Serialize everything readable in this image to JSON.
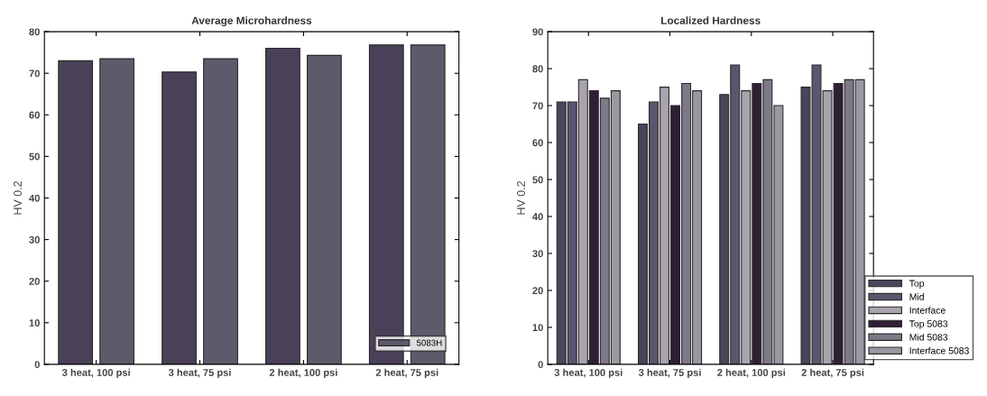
{
  "chart_data": [
    {
      "type": "bar",
      "title": "Average Microhardness",
      "ylabel": "HV 0.2",
      "categories": [
        "3 heat, 100 psi",
        "3 heat, 75 psi",
        "2 heat, 100 psi",
        "2 heat, 75 psi"
      ],
      "ylim": [
        0,
        80
      ],
      "yticks": [
        0,
        10,
        20,
        30,
        40,
        50,
        60,
        70,
        80
      ],
      "legend": "bottom right",
      "grid": false,
      "series": [
        {
          "color": "#4a4058",
          "values": [
            73,
            70.3,
            76,
            76.8
          ]
        },
        {
          "name": "5083H",
          "color": "#5e5a6c",
          "values": [
            73.5,
            73.5,
            74.3,
            76.8
          ]
        }
      ]
    },
    {
      "type": "bar",
      "title": "Localized Hardness",
      "ylabel": "HV 0.2",
      "categories": [
        "3 heat, 100 psi",
        "3 heat, 75 psi",
        "2 heat, 100 psi",
        "2 heat, 75 psi"
      ],
      "ylim": [
        0,
        90
      ],
      "yticks": [
        0,
        10,
        20,
        30,
        40,
        50,
        60,
        70,
        80,
        90
      ],
      "legend": "bottom right",
      "grid": false,
      "series": [
        {
          "name": "Top",
          "color": "#4a4558",
          "values": [
            71,
            65,
            73,
            75
          ]
        },
        {
          "name": "Mid",
          "color": "#5a5670",
          "values": [
            71,
            71,
            81,
            81
          ]
        },
        {
          "name": "Interface",
          "color": "#a9a3ae",
          "values": [
            77,
            75,
            74,
            74
          ]
        },
        {
          "name": "Top 5083",
          "color": "#2e1f35",
          "values": [
            74,
            70,
            76,
            76
          ]
        },
        {
          "name": "Mid 5083",
          "color": "#7e7888",
          "values": [
            72,
            76,
            77,
            77
          ]
        },
        {
          "name": "Interface 5083",
          "color": "#9c98a2",
          "values": [
            74,
            74,
            70,
            77
          ]
        }
      ]
    }
  ]
}
